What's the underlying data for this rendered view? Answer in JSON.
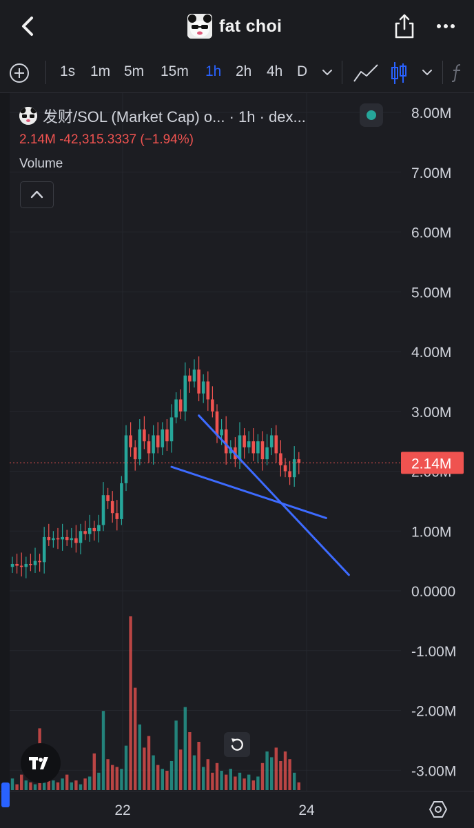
{
  "header": {
    "back_icon": "chevron-left-icon",
    "title": "fat choi",
    "share_icon": "share-icon",
    "more_icon": "more-horizontal-icon"
  },
  "toolbar": {
    "add_icon": "plus-circle-icon",
    "timeframes": [
      "1s",
      "1m",
      "5m",
      "15m",
      "1h",
      "2h",
      "4h",
      "D"
    ],
    "active_timeframe": "1h",
    "line_tool_icon": "trend-line-icon",
    "candle_tool_icon": "candlestick-icon",
    "fx_icon": "fx-icon",
    "accent_color": "#2962ff"
  },
  "legend": {
    "symbol": "发财/SOL (Market Cap) o... · 1h · dex...",
    "ohlc_line": "2.14M  -42,315.3337 (−1.94%)",
    "volume_label": "Volume",
    "status_color": "#26a69a"
  },
  "price_label": "2.14M",
  "chart_data": {
    "type": "candlestick",
    "y_ticks": [
      "8.00M",
      "7.00M",
      "6.00M",
      "5.00M",
      "4.00M",
      "3.00M",
      "2.00M",
      "1.00M",
      "0.0000",
      "-1.00M",
      "-2.00M",
      "-3.00M"
    ],
    "y_tick_values": [
      8,
      7,
      6,
      5,
      4,
      3,
      2,
      1,
      0,
      -1,
      -2,
      -3
    ],
    "x_ticks": [
      "22",
      "24"
    ],
    "last_price": 2.14,
    "colors": {
      "up": "#26a69a",
      "down": "#ef5350",
      "trendline": "#3d6bff"
    },
    "close_path": [
      0.45,
      0.42,
      0.4,
      0.45,
      0.43,
      0.5,
      0.48,
      0.9,
      0.85,
      0.88,
      0.86,
      0.9,
      0.85,
      0.88,
      0.8,
      1.0,
      0.95,
      1.05,
      1.0,
      1.1,
      1.6,
      1.5,
      1.3,
      1.2,
      1.8,
      2.6,
      2.4,
      2.2,
      2.7,
      2.5,
      2.3,
      2.6,
      2.4,
      2.7,
      2.5,
      2.9,
      3.2,
      3.0,
      3.6,
      3.5,
      3.7,
      3.3,
      3.5,
      3.2,
      3.0,
      2.6,
      2.7,
      2.3,
      2.4,
      2.2,
      2.6,
      2.4,
      2.5,
      2.3,
      2.5,
      2.2,
      2.4,
      2.6,
      2.3,
      2.1,
      2.0,
      1.9,
      2.2,
      2.14
    ],
    "trendlines": [
      {
        "from": {
          "bar": 30,
          "y": 3.82
        },
        "to": {
          "bar": 56,
          "y": 1.72
        }
      },
      {
        "from": {
          "bar": 26,
          "y": 2.3
        },
        "to": {
          "bar": 53,
          "y": 1.62
        }
      }
    ],
    "volume_path": [
      0.6,
      0.3,
      0.8,
      0.5,
      0.4,
      0.3,
      3.2,
      0.7,
      0.9,
      0.5,
      0.4,
      0.6,
      0.8,
      0.4,
      0.5,
      0.3,
      0.6,
      0.7,
      1.9,
      0.9,
      4.1,
      1.6,
      1.3,
      1.2,
      1.1,
      2.3,
      9.0,
      5.3,
      3.4,
      2.2,
      2.8,
      1.8,
      1.3,
      1.1,
      1.0,
      1.5,
      3.6,
      2.1,
      4.3,
      3.0,
      1.8,
      2.5,
      1.2,
      1.6,
      0.9,
      1.4,
      1.0,
      0.8,
      1.1,
      0.7,
      0.9,
      0.6,
      0.8,
      0.5,
      0.7,
      1.4,
      2.0,
      1.7,
      2.2,
      1.5,
      2.0,
      1.6,
      0.9,
      0.4
    ]
  },
  "footer": {
    "tv_logo": "tradingview-logo",
    "reset_icon": "rotate-reset-icon",
    "settings_icon": "settings-icon"
  }
}
